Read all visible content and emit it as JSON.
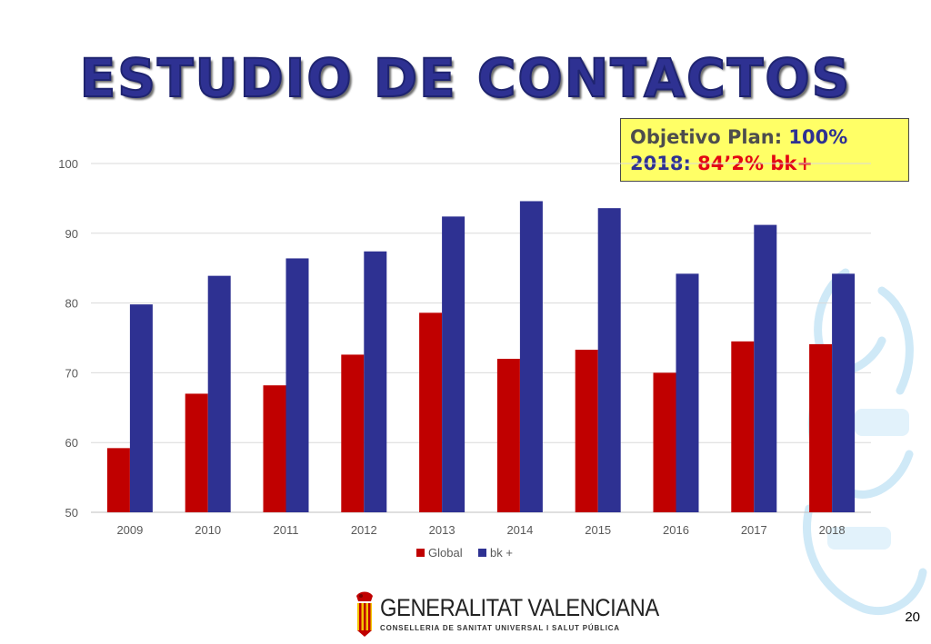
{
  "slide": {
    "title": "ESTUDIO DE CONTACTOS",
    "page_number": "20"
  },
  "objective": {
    "line1_label": "Objetivo Plan: ",
    "line1_value": "100%",
    "line2_label": "2018: ",
    "line2_value": "84’2% bk+"
  },
  "logo": {
    "name": "GENERALITAT VALENCIANA",
    "subtitle": "CONSELLERIA DE SANITAT UNIVERSAL I SALUT PÚBLICA",
    "icon": "valencia-coat-of-arms-icon"
  },
  "colors": {
    "global": "#c00000",
    "bk": "#2e3192",
    "title": "#2e3192",
    "objective_bg": "#ffff66"
  },
  "chart_data": {
    "type": "bar",
    "categories": [
      "2009",
      "2010",
      "2011",
      "2012",
      "2013",
      "2014",
      "2015",
      "2016",
      "2017",
      "2018"
    ],
    "series": [
      {
        "name": "Global",
        "values": [
          59.2,
          67.0,
          68.2,
          72.6,
          78.6,
          72.0,
          73.3,
          70.0,
          74.5,
          74.1
        ]
      },
      {
        "name": "bk +",
        "values": [
          79.8,
          83.9,
          86.4,
          87.4,
          92.4,
          94.6,
          93.6,
          84.2,
          91.2,
          84.2
        ]
      }
    ],
    "ylim": [
      50,
      100
    ],
    "yticks": [
      50,
      60,
      70,
      80,
      90,
      100
    ],
    "grid": true,
    "legend": "bottom"
  }
}
